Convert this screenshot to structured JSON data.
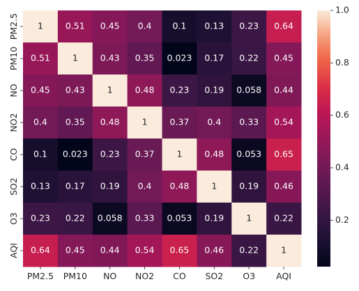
{
  "chart_data": {
    "type": "heatmap",
    "x_labels": [
      "PM2.5",
      "PM10",
      "NO",
      "NO2",
      "CO",
      "SO2",
      "O3",
      "AQI"
    ],
    "y_labels": [
      "PM2.5",
      "PM10",
      "NO",
      "NO2",
      "CO",
      "SO2",
      "O3",
      "AQI"
    ],
    "values": [
      [
        1,
        0.51,
        0.45,
        0.4,
        0.1,
        0.13,
        0.23,
        0.64
      ],
      [
        0.51,
        1,
        0.43,
        0.35,
        0.023,
        0.17,
        0.22,
        0.45
      ],
      [
        0.45,
        0.43,
        1,
        0.48,
        0.23,
        0.19,
        0.058,
        0.44
      ],
      [
        0.4,
        0.35,
        0.48,
        1,
        0.37,
        0.4,
        0.33,
        0.54
      ],
      [
        0.1,
        0.023,
        0.23,
        0.37,
        1,
        0.48,
        0.053,
        0.65
      ],
      [
        0.13,
        0.17,
        0.19,
        0.4,
        0.48,
        1,
        0.19,
        0.46
      ],
      [
        0.23,
        0.22,
        0.058,
        0.33,
        0.053,
        0.19,
        1,
        0.22
      ],
      [
        0.64,
        0.45,
        0.44,
        0.54,
        0.65,
        0.46,
        0.22,
        1
      ]
    ],
    "value_labels": [
      [
        "1",
        "0.51",
        "0.45",
        "0.4",
        "0.1",
        "0.13",
        "0.23",
        "0.64"
      ],
      [
        "0.51",
        "1",
        "0.43",
        "0.35",
        "0.023",
        "0.17",
        "0.22",
        "0.45"
      ],
      [
        "0.45",
        "0.43",
        "1",
        "0.48",
        "0.23",
        "0.19",
        "0.058",
        "0.44"
      ],
      [
        "0.4",
        "0.35",
        "0.48",
        "1",
        "0.37",
        "0.4",
        "0.33",
        "0.54"
      ],
      [
        "0.1",
        "0.023",
        "0.23",
        "0.37",
        "1",
        "0.48",
        "0.053",
        "0.65"
      ],
      [
        "0.13",
        "0.17",
        "0.19",
        "0.4",
        "0.48",
        "1",
        "0.19",
        "0.46"
      ],
      [
        "0.23",
        "0.22",
        "0.058",
        "0.33",
        "0.053",
        "0.19",
        "1",
        "0.22"
      ],
      [
        "0.64",
        "0.45",
        "0.44",
        "0.54",
        "0.65",
        "0.46",
        "0.22",
        "1"
      ]
    ],
    "colormap": "rocket",
    "colorbar": {
      "range": [
        0.023,
        1
      ],
      "ticks": [
        0.2,
        0.4,
        0.6,
        0.8,
        1.0
      ],
      "tick_labels": [
        "0.2",
        "0.4",
        "0.6",
        "0.8",
        "1.0"
      ],
      "position": "right"
    },
    "grid": false,
    "title": "",
    "xlabel": "",
    "ylabel": ""
  }
}
